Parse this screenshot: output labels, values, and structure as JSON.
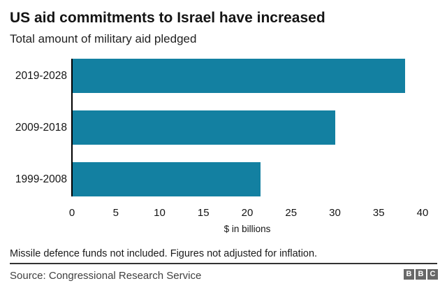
{
  "chart_data": {
    "type": "bar",
    "orientation": "horizontal",
    "title": "US aid commitments to Israel have increased",
    "subtitle": "Total amount of military aid pledged",
    "categories": [
      "2019-2028",
      "2009-2018",
      "1999-2008"
    ],
    "values": [
      38,
      30,
      21.5
    ],
    "xlabel": "$ in billions",
    "ylabel": "",
    "xlim": [
      0,
      40
    ],
    "xticks": [
      0,
      5,
      10,
      15,
      20,
      25,
      30,
      35,
      40
    ],
    "grid": false,
    "legend": false,
    "bar_color": "#1380A1",
    "axis_color": "#000000"
  },
  "footer": {
    "note": "Missile defence funds not included. Figures not adjusted for inflation.",
    "source": "Source: Congressional Research Service",
    "logo_blocks": [
      "B",
      "B",
      "C"
    ]
  }
}
